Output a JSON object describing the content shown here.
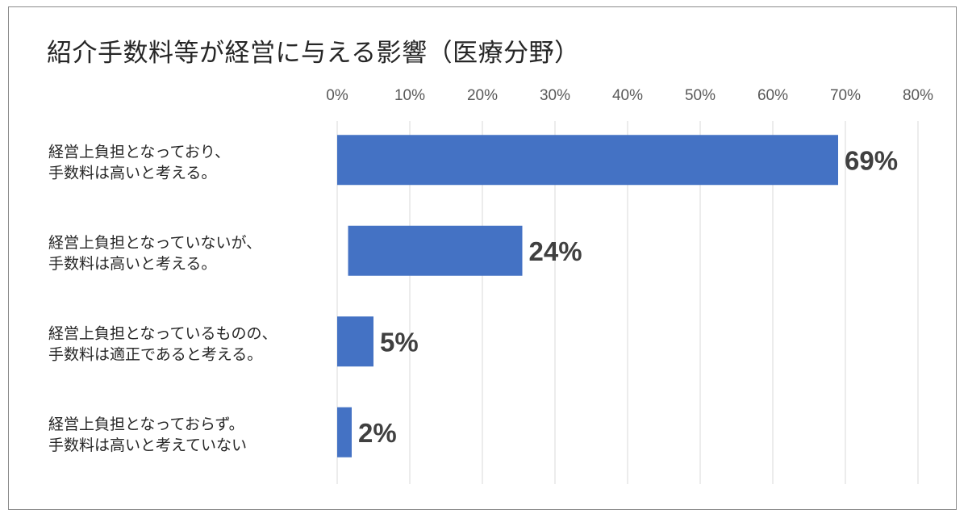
{
  "chart_data": {
    "type": "bar",
    "orientation": "horizontal",
    "title": "紹介手数料等が経営に与える影響（医療分野）",
    "xlim": [
      0,
      80
    ],
    "x_ticks": [
      "0%",
      "10%",
      "20%",
      "30%",
      "40%",
      "50%",
      "60%",
      "70%",
      "80%"
    ],
    "x_tick_values": [
      0,
      10,
      20,
      30,
      40,
      50,
      60,
      70,
      80
    ],
    "grid": true,
    "categories": [
      [
        "経営上負担となっており、",
        "手数料は高いと考える。"
      ],
      [
        "経営上負担となっていないが、",
        "手数料は高いと考える。"
      ],
      [
        "経営上負担となっているものの、",
        "手数料は適正であると考える。"
      ],
      [
        "経営上負担となっておらず。",
        "手数料は高いと考えていない"
      ]
    ],
    "values": [
      69,
      24,
      5,
      2
    ],
    "bar_starts": [
      0,
      1.5,
      0,
      0
    ],
    "data_labels": [
      "69%",
      "24%",
      "5%",
      "2%"
    ],
    "bar_color": "#4472c4"
  }
}
